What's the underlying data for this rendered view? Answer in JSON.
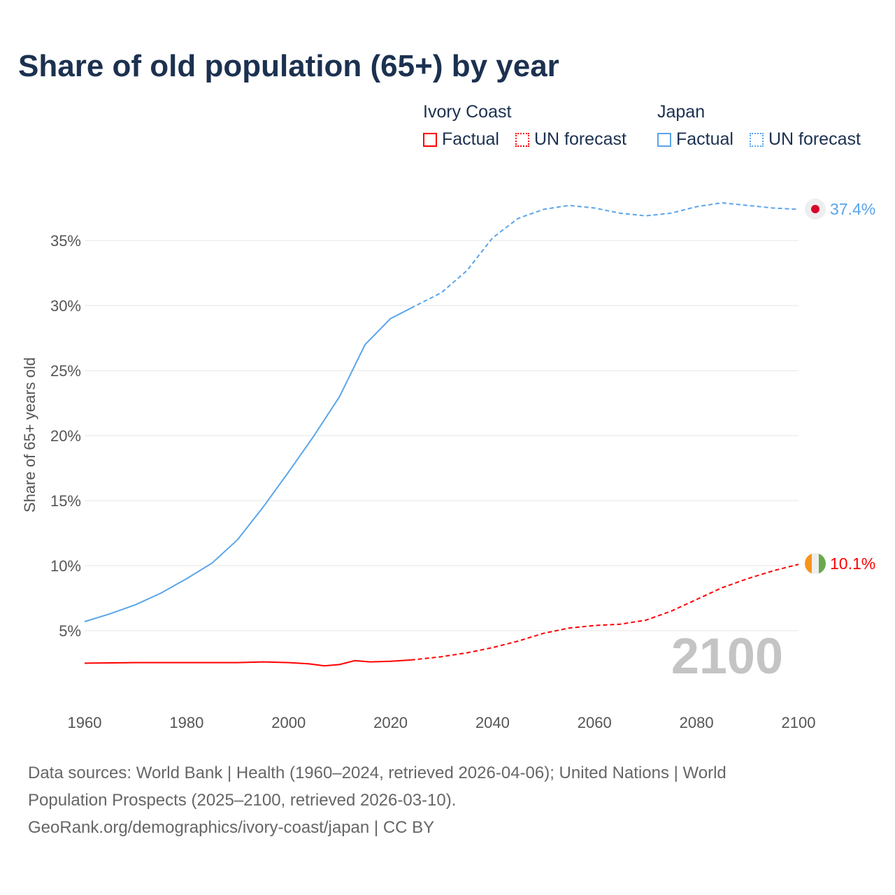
{
  "title": "Share of old population (65+) by year",
  "legend": {
    "groups": [
      {
        "name": "Ivory Coast",
        "color": "#ff0000",
        "factual": "Factual",
        "forecast": "UN forecast"
      },
      {
        "name": "Japan",
        "color": "#5aa5ea",
        "factual": "Factual",
        "forecast": "UN forecast"
      }
    ]
  },
  "chart_data": {
    "type": "line",
    "title": "Share of old population (65+) by year",
    "xlabel": "",
    "ylabel": "Share of 65+ years old",
    "xlim": [
      1960,
      2100
    ],
    "ylim": [
      0,
      38
    ],
    "x_ticks": [
      "1960",
      "1980",
      "2000",
      "2020",
      "2040",
      "2060",
      "2080",
      "2100"
    ],
    "y_ticks": [
      {
        "v": 5,
        "label": "5%"
      },
      {
        "v": 10,
        "label": "10%"
      },
      {
        "v": 15,
        "label": "15%"
      },
      {
        "v": 20,
        "label": "20%"
      },
      {
        "v": 25,
        "label": "25%"
      },
      {
        "v": 30,
        "label": "30%"
      },
      {
        "v": 35,
        "label": "35%"
      }
    ],
    "grid": true,
    "factual_end_year": 2024,
    "year_watermark": "2100",
    "series": [
      {
        "name": "Japan",
        "color": "#5aa5ea",
        "end_label": "37.4%",
        "x": [
          1960,
          1965,
          1970,
          1975,
          1980,
          1985,
          1990,
          1995,
          2000,
          2005,
          2010,
          2015,
          2020,
          2024,
          2030,
          2035,
          2040,
          2045,
          2050,
          2055,
          2060,
          2065,
          2070,
          2075,
          2080,
          2085,
          2090,
          2095,
          2100
        ],
        "y": [
          5.7,
          6.3,
          7.0,
          7.9,
          9.0,
          10.2,
          12.0,
          14.5,
          17.2,
          20.0,
          23.0,
          27.0,
          29.0,
          29.8,
          31.0,
          32.7,
          35.2,
          36.7,
          37.4,
          37.7,
          37.5,
          37.1,
          36.9,
          37.1,
          37.6,
          37.9,
          37.7,
          37.5,
          37.4
        ]
      },
      {
        "name": "Ivory Coast",
        "color": "#ff0000",
        "end_label": "10.1%",
        "x": [
          1960,
          1970,
          1980,
          1990,
          1995,
          2000,
          2004,
          2007,
          2010,
          2013,
          2016,
          2020,
          2024,
          2030,
          2035,
          2040,
          2045,
          2050,
          2055,
          2060,
          2065,
          2070,
          2075,
          2080,
          2085,
          2090,
          2095,
          2100
        ],
        "y": [
          2.5,
          2.55,
          2.55,
          2.55,
          2.6,
          2.55,
          2.45,
          2.3,
          2.4,
          2.7,
          2.6,
          2.65,
          2.75,
          3.0,
          3.3,
          3.7,
          4.2,
          4.8,
          5.2,
          5.4,
          5.5,
          5.8,
          6.5,
          7.4,
          8.3,
          9.0,
          9.6,
          10.1
        ]
      }
    ]
  },
  "footer": {
    "line1": "Data sources: World Bank | Health (1960–2024, retrieved 2026-04-06); United Nations | World",
    "line2": "Population Prospects (2025–2100, retrieved 2026-03-10).",
    "line3": "GeoRank.org/demographics/ivory-coast/japan | CC BY"
  }
}
